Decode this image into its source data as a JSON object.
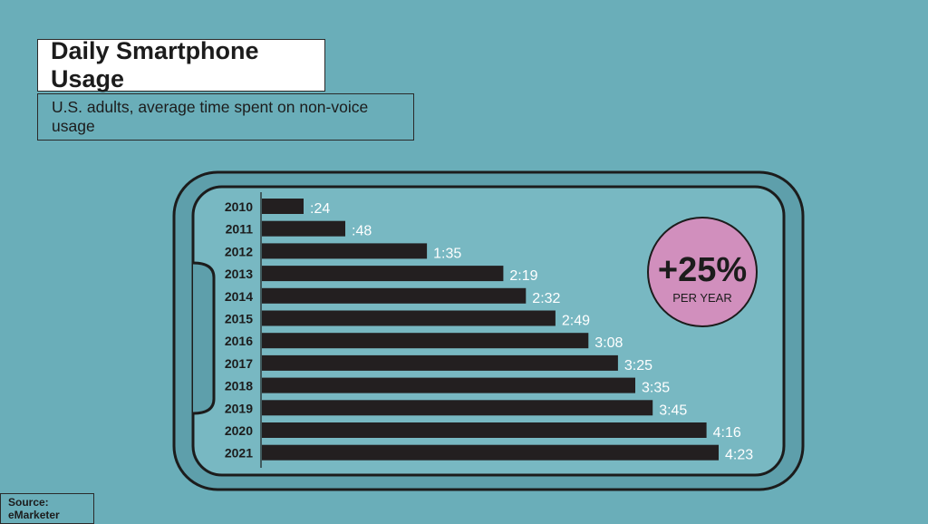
{
  "header": {
    "title": "Daily Smartphone Usage",
    "subtitle": "U.S. adults, average time spent on non-voice usage"
  },
  "source": "Source: eMarketer",
  "badge": {
    "value": "+25%",
    "label": "PER YEAR",
    "color": "#d18fbd"
  },
  "colors": {
    "background": "#6aaeb9",
    "bar": "#231f20",
    "phone_screen": "#78b8c2",
    "phone_frame": "#5e9fab"
  },
  "chart_data": {
    "type": "bar",
    "orientation": "horizontal",
    "unit": "minutes",
    "categories": [
      "2010",
      "2011",
      "2012",
      "2013",
      "2014",
      "2015",
      "2016",
      "2017",
      "2018",
      "2019",
      "2020",
      "2021"
    ],
    "values": [
      24,
      48,
      95,
      139,
      152,
      169,
      188,
      205,
      215,
      225,
      256,
      263
    ],
    "value_labels": [
      ":24",
      ":48",
      "1:35",
      "2:19",
      "2:32",
      "2:49",
      "3:08",
      "3:25",
      "3:35",
      "3:45",
      "4:16",
      "4:23"
    ],
    "title": "Daily Smartphone Usage",
    "subtitle": "U.S. adults, average time spent on non-voice usage",
    "xlabel": "",
    "ylabel": "",
    "xlim": [
      0,
      263
    ],
    "grid": false,
    "legend": "none"
  }
}
